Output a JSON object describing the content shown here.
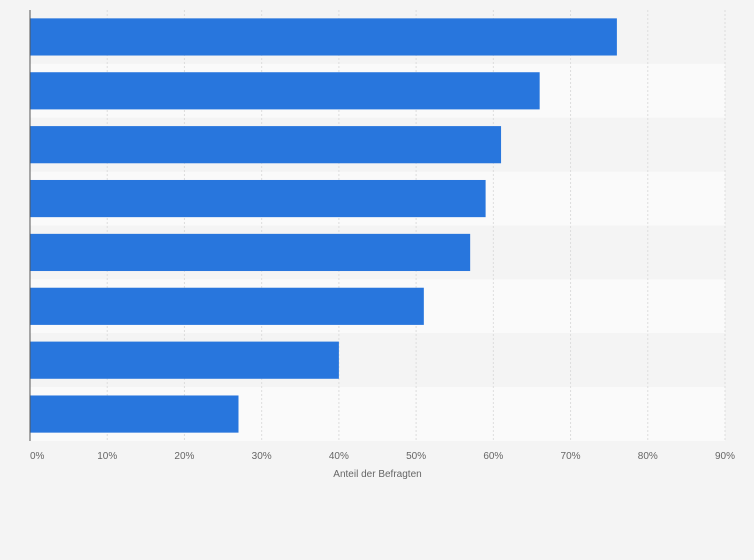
{
  "chart_data": {
    "type": "bar",
    "orientation": "horizontal",
    "categories": [
      "",
      "",
      "",
      "",
      "",
      "",
      "",
      ""
    ],
    "series": [
      {
        "values": [
          76,
          66,
          61,
          59,
          57,
          51,
          40,
          27
        ]
      }
    ],
    "xlabel": "Anteil der Befragten",
    "ylabel": "",
    "xlim": [
      0,
      90
    ],
    "x_ticks": [
      0,
      10,
      20,
      30,
      40,
      50,
      60,
      70,
      80,
      90
    ],
    "x_tick_labels": [
      "0%",
      "10%",
      "20%",
      "30%",
      "40%",
      "50%",
      "60%",
      "70%",
      "80%",
      "90%"
    ],
    "grid": true,
    "legend": "none",
    "colors": {
      "bar": "#2876dd",
      "band_light": "#fafafa",
      "band_dark": "#f4f4f4",
      "background": "#f4f4f4",
      "grid": "#dddddd",
      "axis": "#555555",
      "text": "#666666"
    }
  }
}
